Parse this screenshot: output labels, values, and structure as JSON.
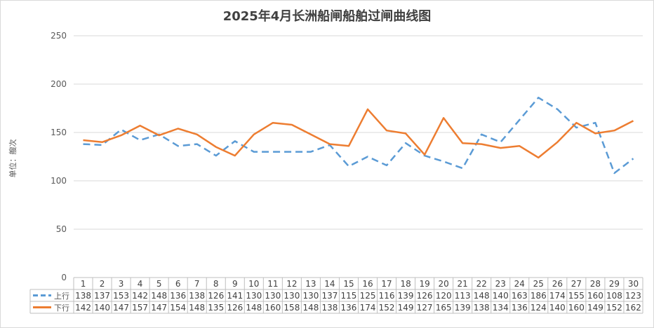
{
  "chart_data": {
    "type": "line",
    "title": "2025年4月长洲船闸船舶过闸曲线图",
    "ylabel": "单位：艘次",
    "xlabel": "",
    "ylim": [
      0,
      250
    ],
    "yticks": [
      0,
      50,
      100,
      150,
      200,
      250
    ],
    "grid": true,
    "legend": "data-table-left",
    "categories": [
      "1",
      "2",
      "3",
      "4",
      "5",
      "6",
      "7",
      "8",
      "9",
      "10",
      "11",
      "12",
      "13",
      "14",
      "15",
      "16",
      "17",
      "18",
      "19",
      "20",
      "21",
      "22",
      "23",
      "24",
      "25",
      "26",
      "27",
      "28",
      "29",
      "30"
    ],
    "series": [
      {
        "name": "上行",
        "color": "#5B9BD5",
        "style": "dashed",
        "values": [
          138,
          137,
          153,
          142,
          148,
          136,
          138,
          126,
          141,
          130,
          130,
          130,
          130,
          137,
          115,
          125,
          116,
          139,
          126,
          120,
          113,
          148,
          140,
          163,
          186,
          174,
          155,
          160,
          108,
          123
        ]
      },
      {
        "name": "下行",
        "color": "#ED7D31",
        "style": "solid",
        "values": [
          142,
          140,
          147,
          157,
          147,
          154,
          148,
          135,
          126,
          148,
          160,
          158,
          148,
          138,
          136,
          174,
          152,
          149,
          127,
          165,
          139,
          138,
          134,
          136,
          124,
          140,
          160,
          149,
          152,
          162
        ]
      }
    ]
  }
}
